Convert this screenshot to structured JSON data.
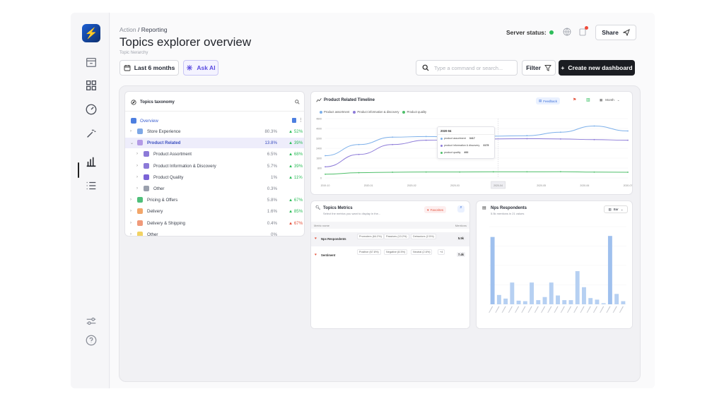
{
  "breadcrumb": {
    "parent": "Action",
    "separator": " / ",
    "current": "Reporting"
  },
  "page": {
    "title": "Topics explorer overview",
    "subtitle": "Topic hierarchy"
  },
  "server_status": {
    "label": "Server status:",
    "color": "#2ebd5b"
  },
  "header_buttons": {
    "share": "Share"
  },
  "toolbar": {
    "date_range": "Last 6 months",
    "ask_ai": "Ask AI",
    "search_placeholder": "Type a command or search...",
    "filter": "Filter",
    "create": "Create new dashboard"
  },
  "sidebar": {
    "icons": [
      "home-icon",
      "grid-icon",
      "gauge-icon",
      "magic-wand-icon",
      "bar-chart-icon",
      "list-icon",
      "sliders-icon",
      "help-icon"
    ],
    "active": "bar-chart-icon"
  },
  "taxonomy": {
    "title": "Topics taxonomy",
    "overview": "Overview",
    "rows": [
      {
        "label": "Store Experience",
        "pct": "80.3%",
        "change": "▲ 52%",
        "trend": "up",
        "indent": 0,
        "expanded": false,
        "icon_color": "#7ea8e6"
      },
      {
        "label": "Product Related",
        "pct": "13.8%",
        "change": "▲ 39%",
        "trend": "up",
        "indent": 0,
        "expanded": true,
        "selected": true,
        "icon_color": "#b39ae6"
      },
      {
        "label": "Product Assortment",
        "pct": "6.5%",
        "change": "▲ 68%",
        "trend": "up",
        "indent": 1,
        "icon_color": "#8c7ad8"
      },
      {
        "label": "Product Information & Discovery",
        "pct": "5.7%",
        "change": "▲ 39%",
        "trend": "up",
        "indent": 1,
        "icon_color": "#8c7ad8"
      },
      {
        "label": "Product Quality",
        "pct": "1%",
        "change": "▲ 11%",
        "trend": "up",
        "indent": 1,
        "icon_color": "#7b63d6"
      },
      {
        "label": "Other",
        "pct": "0.3%",
        "change": "",
        "trend": "none",
        "indent": 1,
        "icon_color": "#9aa0ad"
      },
      {
        "label": "Pricing & Offers",
        "pct": "5.8%",
        "change": "▲ 67%",
        "trend": "up",
        "indent": 0,
        "icon_color": "#4fbf7a"
      },
      {
        "label": "Delivery",
        "pct": "1.6%",
        "change": "▲ 85%",
        "trend": "up",
        "indent": 0,
        "icon_color": "#f2a66a"
      },
      {
        "label": "Delivery & Shipping",
        "pct": "0.4%",
        "change": "▲ 67%",
        "trend": "down",
        "indent": 0,
        "icon_color": "#f09a7a"
      },
      {
        "label": "Other",
        "pct": "0%",
        "change": "",
        "trend": "none",
        "indent": 0,
        "icon_color": "#f2d264"
      }
    ]
  },
  "timeline": {
    "title": "Product Related Timeline",
    "feedback_tag": "Feedback",
    "period": "Month",
    "tooltip": {
      "date": "2020-04",
      "items": [
        {
          "label": "product assortment",
          "value": "3417",
          "color": "#7db0ea"
        },
        {
          "label": "product information & discovery",
          "value": "3175",
          "color": "#8c7ad8"
        },
        {
          "label": "product quality",
          "value": "492",
          "color": "#4fbf6a"
        }
      ]
    }
  },
  "metrics": {
    "title": "Topics Metrics",
    "subtitle": "Select the metrics you want to display in the...",
    "favorites_label": "Favorites",
    "col_name": "Metric name",
    "col_mentions": "Mentions",
    "rows": [
      {
        "name": "Nps Respondents",
        "breakdown": [
          "Promoters (64.2%)",
          "Passives (13.2%)",
          "Detractors (2.5%)"
        ],
        "mentions": "5.5k"
      },
      {
        "name": "Sentiment",
        "breakdown": [
          "Positive (67.8%)",
          "Negative (8.5%)",
          "Neutral (2.6%)",
          "+4"
        ],
        "mentions": "7.4k"
      }
    ]
  },
  "nps": {
    "title": "Nps Respondents",
    "subtitle": "5.5k mentions in 21 values",
    "chart_type_label": "Bar"
  },
  "chart_data": [
    {
      "type": "line",
      "title": "Product Related Timeline",
      "x": [
        "2019-10",
        "2019-11",
        "2019-12",
        "2020-01",
        "2020-02",
        "2020-03",
        "2020-04",
        "2020-05",
        "2020-06",
        "2020-07"
      ],
      "x_ticks": [
        "2019-10",
        "2020-01",
        "2020-02",
        "2020-03",
        "2020-04",
        "2020-05",
        "2020-06",
        "2020-07"
      ],
      "y_ticks": [
        "0",
        "800",
        "1600",
        "2400",
        "3200",
        "4000",
        "4800"
      ],
      "ylim": [
        0,
        4800
      ],
      "series": [
        {
          "name": "Product assortment",
          "color": "#7db0ea",
          "values": [
            1800,
            2700,
            3300,
            3350,
            3300,
            3380,
            3417,
            3700,
            4200,
            3800
          ]
        },
        {
          "name": "Product information & discovery",
          "color": "#8c7ad8",
          "values": [
            900,
            1900,
            2700,
            3050,
            3100,
            3150,
            3175,
            3150,
            3100,
            3050
          ]
        },
        {
          "name": "Product quality",
          "color": "#4fbf6a",
          "values": [
            300,
            420,
            460,
            480,
            480,
            490,
            492,
            500,
            470,
            460
          ]
        }
      ],
      "legend_position": "top-left",
      "grid": true
    },
    {
      "type": "bar",
      "title": "Nps Respondents",
      "values": [
        1300,
        180,
        110,
        420,
        70,
        60,
        420,
        80,
        140,
        420,
        170,
        80,
        80,
        640,
        330,
        120,
        90,
        20,
        1320,
        200,
        60
      ],
      "ylim": [
        0,
        1500
      ],
      "color": "#b6d0f2",
      "highlight_color": "#9fc0ee",
      "grid": false
    }
  ]
}
